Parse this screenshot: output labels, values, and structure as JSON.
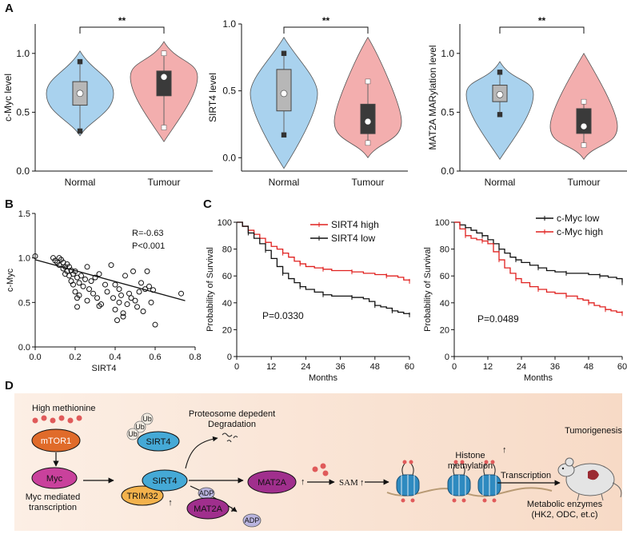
{
  "panels": {
    "A": "A",
    "B": "B",
    "C": "C",
    "D": "D"
  },
  "chart_data": [
    {
      "type": "violin",
      "panel": "A",
      "categories": [
        "Normal",
        "Tumour"
      ],
      "ylabel": "c-Myc level",
      "ylim": [
        0.0,
        1.25
      ],
      "yticks": [
        "0.0",
        "0.5",
        "1.0"
      ],
      "significance": "**",
      "summary": [
        {
          "name": "Normal",
          "q1": 0.56,
          "median": 0.66,
          "q3": 0.76,
          "min": 0.34,
          "max": 0.93,
          "vmin": 0.3,
          "vmax": 1.02
        },
        {
          "name": "Tumour",
          "q1": 0.64,
          "median": 0.8,
          "q3": 0.85,
          "min": 0.37,
          "max": 1.0,
          "vmin": 0.25,
          "vmax": 1.1
        }
      ]
    },
    {
      "type": "violin",
      "panel": "A",
      "categories": [
        "Normal",
        "Tumour"
      ],
      "ylabel": "SIRT4 level",
      "ylim": [
        -0.1,
        1.0
      ],
      "yticks": [
        "0.0",
        "0.5",
        "1.0"
      ],
      "significance": "**",
      "summary": [
        {
          "name": "Normal",
          "q1": 0.35,
          "median": 0.48,
          "q3": 0.66,
          "min": 0.17,
          "max": 0.78,
          "vmin": -0.08,
          "vmax": 0.9
        },
        {
          "name": "Tumour",
          "q1": 0.18,
          "median": 0.27,
          "q3": 0.4,
          "min": 0.11,
          "max": 0.57,
          "vmin": 0.0,
          "vmax": 0.9
        }
      ]
    },
    {
      "type": "violin",
      "panel": "A",
      "categories": [
        "Normal",
        "Tumour"
      ],
      "ylabel": "MAT2A MARylation level",
      "ylim": [
        0.0,
        1.25
      ],
      "yticks": [
        "0.0",
        "0.5",
        "1.0"
      ],
      "significance": "**",
      "summary": [
        {
          "name": "Normal",
          "q1": 0.59,
          "median": 0.65,
          "q3": 0.73,
          "min": 0.48,
          "max": 0.84,
          "vmin": 0.1,
          "vmax": 0.93
        },
        {
          "name": "Tumour",
          "q1": 0.32,
          "median": 0.38,
          "q3": 0.53,
          "min": 0.22,
          "max": 0.59,
          "vmin": 0.1,
          "vmax": 1.0
        }
      ]
    },
    {
      "type": "scatter",
      "panel": "B",
      "xlabel": "SIRT4",
      "ylabel": "c-Myc",
      "xlim": [
        0.0,
        0.8
      ],
      "ylim": [
        0.0,
        1.5
      ],
      "xticks": [
        "0.0",
        "0.2",
        "0.4",
        "0.6",
        "0.8"
      ],
      "yticks": [
        "0.0",
        "0.5",
        "1.0",
        "1.5"
      ],
      "annotation_r": "R=-0.63",
      "annotation_p": "P<0.001",
      "fit": {
        "x": [
          0.0,
          0.75
        ],
        "y": [
          0.98,
          0.52
        ]
      },
      "x": [
        0.0,
        0.09,
        0.1,
        0.11,
        0.12,
        0.12,
        0.13,
        0.14,
        0.14,
        0.15,
        0.15,
        0.16,
        0.16,
        0.17,
        0.17,
        0.18,
        0.18,
        0.19,
        0.19,
        0.2,
        0.2,
        0.21,
        0.21,
        0.22,
        0.22,
        0.23,
        0.24,
        0.25,
        0.26,
        0.27,
        0.28,
        0.29,
        0.3,
        0.31,
        0.32,
        0.33,
        0.35,
        0.36,
        0.38,
        0.39,
        0.4,
        0.4,
        0.41,
        0.42,
        0.42,
        0.43,
        0.44,
        0.45,
        0.46,
        0.47,
        0.48,
        0.49,
        0.5,
        0.51,
        0.52,
        0.53,
        0.54,
        0.55,
        0.56,
        0.57,
        0.58,
        0.59,
        0.6,
        0.73,
        0.21,
        0.26,
        0.32,
        0.44
      ],
      "y": [
        1.02,
        1.0,
        0.97,
        0.95,
        1.0,
        0.92,
        0.98,
        0.88,
        0.95,
        0.9,
        0.82,
        0.93,
        0.85,
        0.8,
        0.9,
        0.86,
        0.74,
        0.82,
        0.7,
        0.85,
        0.62,
        0.78,
        0.45,
        0.72,
        0.58,
        0.8,
        0.68,
        0.76,
        0.52,
        0.65,
        0.74,
        0.6,
        0.78,
        0.55,
        0.82,
        0.48,
        0.7,
        0.62,
        0.92,
        0.55,
        0.7,
        0.42,
        0.3,
        0.65,
        0.5,
        0.58,
        0.38,
        0.8,
        0.48,
        0.6,
        0.55,
        0.85,
        0.52,
        0.45,
        0.62,
        0.72,
        0.4,
        0.65,
        0.85,
        0.68,
        0.5,
        0.64,
        0.25,
        0.6,
        0.55,
        0.9,
        0.46,
        0.34
      ]
    },
    {
      "type": "line",
      "panel": "C",
      "xlabel": "Months",
      "ylabel": "Probability of Survival",
      "xlim": [
        0,
        60
      ],
      "ylim": [
        0,
        100
      ],
      "xticks": [
        "0",
        "12",
        "24",
        "36",
        "48",
        "60"
      ],
      "yticks": [
        "0",
        "20",
        "40",
        "60",
        "80",
        "100"
      ],
      "pvalue": "P=0.0330",
      "series": [
        {
          "name": "SIRT4 high",
          "color": "#e0201f",
          "x": [
            0,
            2,
            4,
            6,
            8,
            10,
            12,
            14,
            16,
            18,
            20,
            22,
            24,
            27,
            30,
            33,
            36,
            40,
            44,
            48,
            52,
            56,
            58,
            60
          ],
          "y": [
            100,
            97,
            94,
            91,
            88,
            85,
            82,
            80,
            77,
            74,
            71,
            69,
            67,
            66,
            65,
            64,
            64,
            63,
            62,
            61,
            60,
            59,
            57,
            56
          ]
        },
        {
          "name": "SIRT4 low",
          "color": "#111111",
          "x": [
            0,
            2,
            4,
            6,
            8,
            10,
            12,
            14,
            16,
            18,
            20,
            22,
            24,
            27,
            30,
            33,
            36,
            40,
            44,
            46,
            48,
            50,
            52,
            54,
            56,
            58,
            60
          ],
          "y": [
            100,
            97,
            92,
            88,
            84,
            79,
            73,
            67,
            62,
            58,
            55,
            52,
            50,
            48,
            46,
            45,
            45,
            44,
            43,
            41,
            38,
            37,
            36,
            34,
            33,
            32,
            31
          ]
        }
      ]
    },
    {
      "type": "line",
      "panel": "C",
      "xlabel": "Months",
      "ylabel": "Probability of Survival",
      "xlim": [
        0,
        60
      ],
      "ylim": [
        0,
        100
      ],
      "xticks": [
        "0",
        "12",
        "24",
        "36",
        "48",
        "60"
      ],
      "yticks": [
        "0",
        "20",
        "40",
        "60",
        "80",
        "100"
      ],
      "pvalue": "P=0.0489",
      "series": [
        {
          "name": "c-Myc low",
          "color": "#111111",
          "x": [
            0,
            2,
            4,
            6,
            8,
            10,
            12,
            14,
            16,
            18,
            20,
            22,
            24,
            27,
            30,
            33,
            36,
            40,
            44,
            48,
            52,
            55,
            58,
            60
          ],
          "y": [
            100,
            98,
            96,
            94,
            92,
            90,
            87,
            84,
            80,
            77,
            74,
            72,
            70,
            68,
            66,
            64,
            63,
            62,
            62,
            61,
            60,
            59,
            58,
            55
          ]
        },
        {
          "name": "c-Myc high",
          "color": "#e0201f",
          "x": [
            0,
            2,
            4,
            6,
            8,
            10,
            12,
            14,
            16,
            18,
            20,
            22,
            24,
            27,
            30,
            33,
            36,
            40,
            44,
            46,
            48,
            50,
            52,
            54,
            56,
            58,
            60
          ],
          "y": [
            100,
            95,
            90,
            88,
            87,
            86,
            84,
            78,
            72,
            66,
            62,
            58,
            55,
            52,
            50,
            48,
            47,
            45,
            43,
            42,
            40,
            38,
            37,
            35,
            34,
            33,
            32
          ]
        }
      ]
    }
  ],
  "diagram": {
    "high_methionine": "High methionine",
    "mTOR1": "mTOR1",
    "Myc": "Myc",
    "myc_mediated_1": "Myc mediated",
    "myc_mediated_2": "transcription",
    "ub1": "Ub",
    "ub2": "Ub",
    "ub3": "Ub",
    "SIRT4_ub": "SIRT4",
    "proteosome_1": "Proteosome depedent",
    "proteosome_2": "Degradation",
    "SIRT4": "SIRT4",
    "TRIM32": "TRIM32",
    "ADP1": "ADP",
    "MAT2A_adp": "MAT2A",
    "ADP2": "ADP",
    "MAT2A": "MAT2A",
    "SAM": "SAM",
    "histone_1": "Histone",
    "histone_2": "methylation",
    "transcription": "Transcription",
    "tumorigenesis": "Tumorigenesis",
    "metabolic_1": "Metabolic enzymes",
    "metabolic_2": "(HK2, ODC, et.c)",
    "colors": {
      "mtor": "#e06b2a",
      "myc": "#c9419c",
      "sirt4": "#45a9d6",
      "trim32": "#f3b24c",
      "mat2a": "#a02f8d",
      "adp": "#b9b4de",
      "bg": "#fbe6d7"
    }
  }
}
